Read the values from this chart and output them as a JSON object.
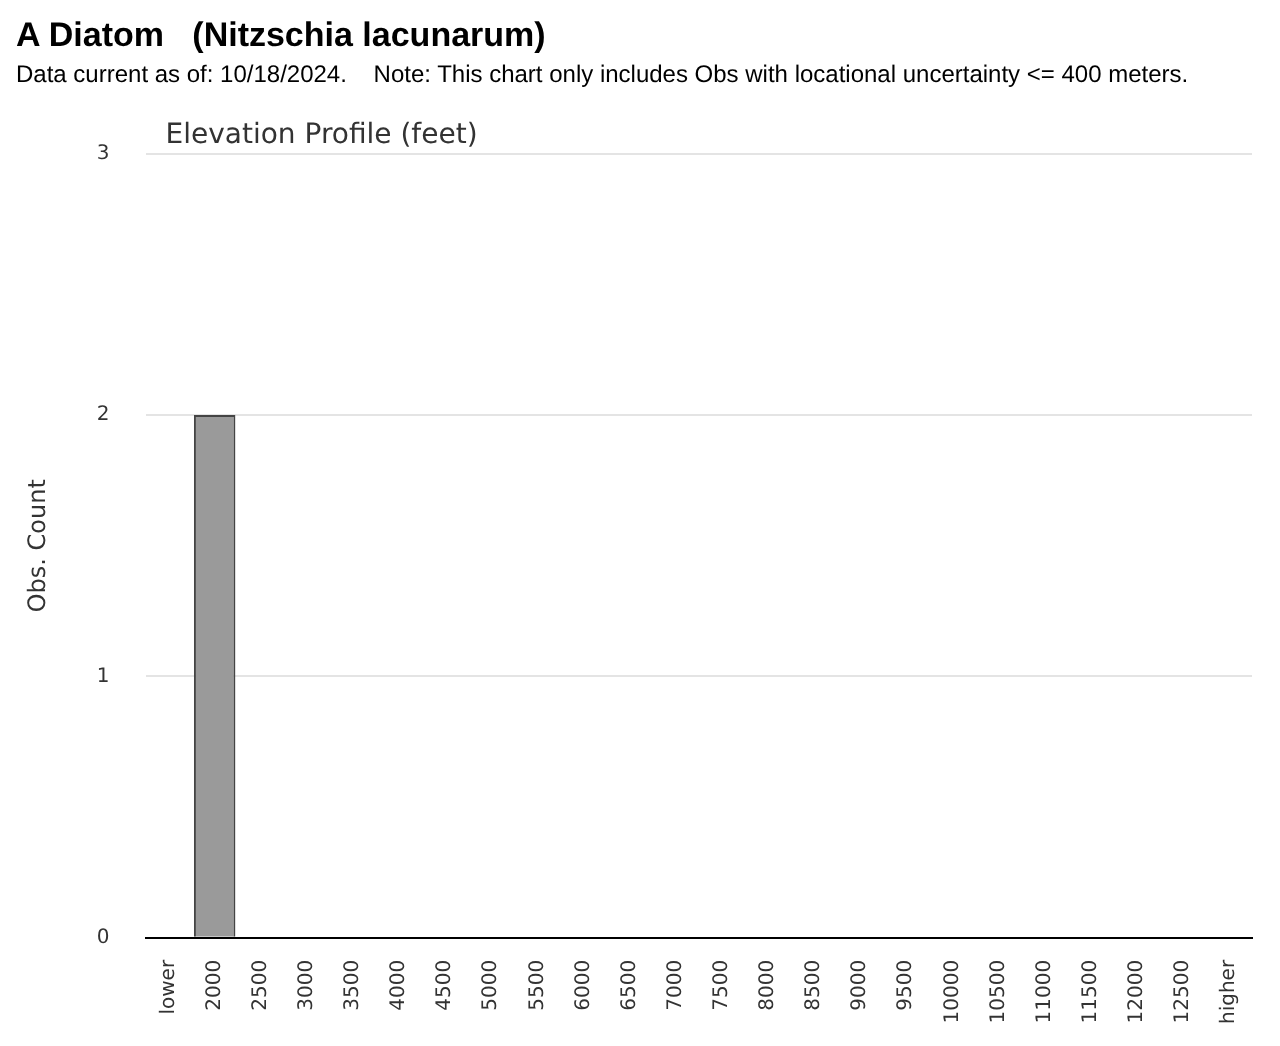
{
  "chart_data": {
    "type": "bar",
    "title": "A Diatom   (Nitzschia lacunarum)",
    "subtitle": "Data current as of: 10/18/2024.    Note: This chart only includes Obs with locational uncertainty <= 400 meters.",
    "ylabel": "Obs. Count",
    "annotations": [
      "Elevation Profile (feet)"
    ],
    "categories": [
      "lower",
      "2000",
      "2500",
      "3000",
      "3500",
      "4000",
      "4500",
      "5000",
      "5500",
      "6000",
      "6500",
      "7000",
      "7500",
      "8000",
      "8500",
      "9000",
      "9500",
      "10000",
      "10500",
      "11000",
      "11500",
      "12000",
      "12500",
      "higher"
    ],
    "values": [
      0,
      2,
      0,
      0,
      0,
      0,
      0,
      0,
      0,
      0,
      0,
      0,
      0,
      0,
      0,
      0,
      0,
      0,
      0,
      0,
      0,
      0,
      0,
      0
    ],
    "color": "#9a9a9a",
    "ylim": [
      0,
      3
    ],
    "yticks": [
      0,
      1,
      2,
      3
    ],
    "grid": "y",
    "legend": false
  }
}
